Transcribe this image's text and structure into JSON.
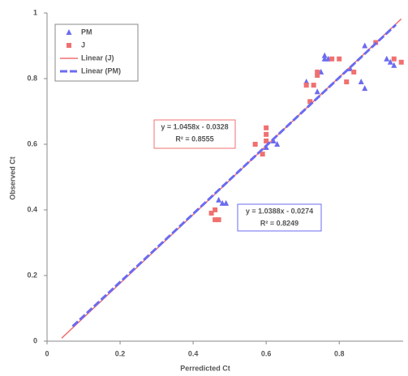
{
  "chart_data": {
    "type": "scatter",
    "x_label": "Perredicted Ct",
    "y_label": "Observed Ct",
    "xlim": [
      0,
      0.975
    ],
    "ylim": [
      0,
      1
    ],
    "xticks": [
      0,
      0.2,
      0.4,
      0.6,
      0.8
    ],
    "yticks": [
      0,
      0.2,
      0.4,
      0.6,
      0.8,
      1
    ],
    "series": [
      {
        "name": "PM",
        "kind": "points",
        "marker": "triangle",
        "color": "#6b6bf0",
        "x": [
          0.47,
          0.48,
          0.49,
          0.6,
          0.62,
          0.63,
          0.71,
          0.74,
          0.75,
          0.76,
          0.76,
          0.77,
          0.83,
          0.86,
          0.87,
          0.87,
          0.93,
          0.94,
          0.95
        ],
        "values": [
          0.43,
          0.42,
          0.42,
          0.59,
          0.61,
          0.6,
          0.79,
          0.76,
          0.82,
          0.86,
          0.87,
          0.86,
          0.83,
          0.79,
          0.77,
          0.9,
          0.86,
          0.85,
          0.84
        ]
      },
      {
        "name": "J",
        "kind": "points",
        "marker": "square",
        "color": "#f07070",
        "x": [
          0.45,
          0.46,
          0.46,
          0.47,
          0.57,
          0.59,
          0.6,
          0.6,
          0.6,
          0.71,
          0.72,
          0.73,
          0.74,
          0.74,
          0.78,
          0.8,
          0.82,
          0.84,
          0.9,
          0.95,
          0.97
        ],
        "values": [
          0.39,
          0.4,
          0.37,
          0.37,
          0.6,
          0.57,
          0.61,
          0.63,
          0.65,
          0.78,
          0.73,
          0.78,
          0.82,
          0.81,
          0.86,
          0.86,
          0.79,
          0.82,
          0.91,
          0.86,
          0.85
        ]
      },
      {
        "name": "Linear (J)",
        "kind": "line",
        "style": "solid",
        "color": "#f07070",
        "x": [
          0.04,
          0.97
        ],
        "values": [
          0.009,
          0.982
        ]
      },
      {
        "name": "Linear (PM)",
        "kind": "line",
        "style": "dashed",
        "color": "#6b6bf0",
        "x": [
          0.07,
          0.955
        ],
        "values": [
          0.045,
          0.964
        ]
      }
    ],
    "annotations": [
      {
        "lines": [
          "y = 1.0458x - 0.0328",
          "R² = 0.8555"
        ],
        "color": "#f07070"
      },
      {
        "lines": [
          "y = 1.0388x - 0.0274",
          "R² = 0.8249"
        ],
        "color": "#6b6bf0"
      }
    ]
  }
}
